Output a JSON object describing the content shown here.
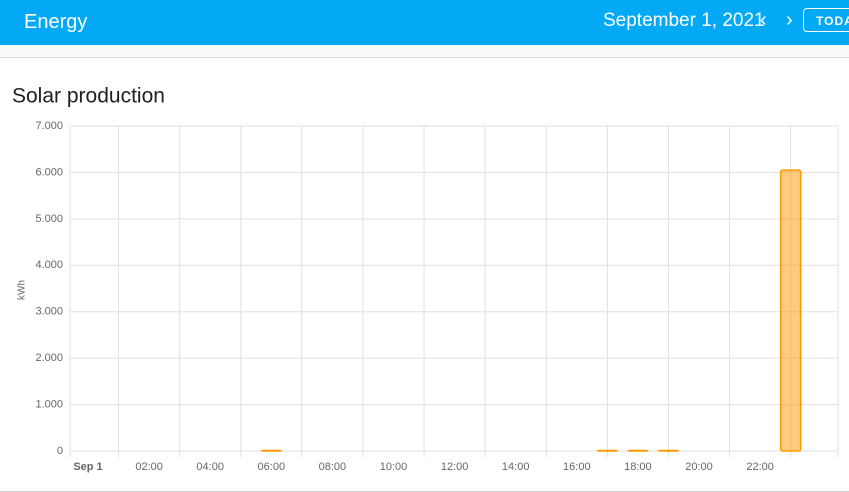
{
  "header": {
    "title": "Energy",
    "date": "September 1, 2021",
    "today_button": "TODAY"
  },
  "chart_data": {
    "type": "bar",
    "title": "Solar production",
    "y_label": "kWh",
    "categories": [
      "Sep 1",
      null,
      "02:00",
      null,
      "04:00",
      null,
      "06:00",
      null,
      "08:00",
      null,
      "10:00",
      null,
      "12:00",
      null,
      "14:00",
      null,
      "16:00",
      null,
      "18:00",
      null,
      "20:00",
      null,
      "22:00",
      null
    ],
    "values": [
      0,
      0,
      0,
      0,
      0,
      0,
      0.01,
      0,
      0,
      0,
      0,
      0,
      0,
      0,
      0,
      0,
      0,
      0.01,
      0.01,
      0.01,
      0,
      0,
      0,
      6.05
    ],
    "color": "#ff9800",
    "ylim": [
      0,
      7
    ],
    "yticks": [
      0,
      {
        "value": 1,
        "label": "1.000"
      },
      {
        "value": 2,
        "label": "2.000"
      },
      {
        "value": 3,
        "label": "3.000"
      },
      {
        "value": 4,
        "label": "4.000"
      },
      {
        "value": 5,
        "label": "5.000"
      },
      {
        "value": 6,
        "label": "6.000"
      },
      {
        "value": 7,
        "label": "7.000"
      }
    ],
    "grid": true
  }
}
